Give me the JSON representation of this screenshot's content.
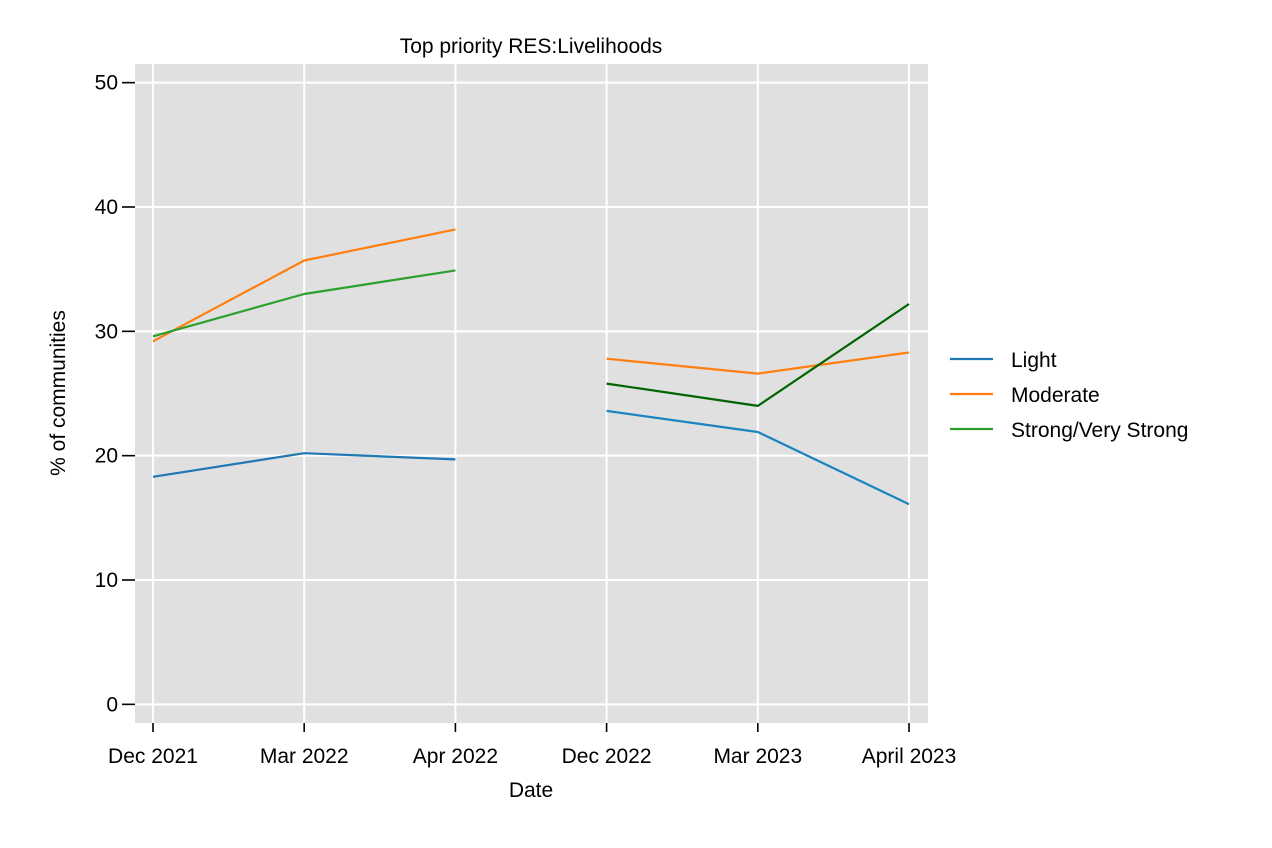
{
  "chart_data": {
    "type": "line",
    "title": "Top priority RES:Livelihoods",
    "xlabel": "Date",
    "ylabel": "% of communities",
    "categories": [
      "Dec 2021",
      "Mar 2022",
      "Apr 2022",
      "Dec 2022",
      "Mar 2023",
      "April 2023"
    ],
    "ylim": [
      -1.5,
      51.5
    ],
    "yticks": [
      0,
      10,
      20,
      30,
      40,
      50
    ],
    "grid": true,
    "background": "#e0e0e0",
    "legend_position": "right",
    "series": [
      {
        "name": "Light",
        "color": "#1f77b4",
        "segments": [
          {
            "indices": [
              0,
              1,
              2
            ],
            "values": [
              18.3,
              20.2,
              19.7
            ]
          },
          {
            "indices": [
              3,
              4,
              5
            ],
            "values": [
              23.6,
              21.9,
              16.1
            ],
            "color": "#1a85c0"
          }
        ]
      },
      {
        "name": "Moderate",
        "color": "#ff7f0e",
        "segments": [
          {
            "indices": [
              0,
              1,
              2
            ],
            "values": [
              29.2,
              35.7,
              38.2
            ]
          },
          {
            "indices": [
              3,
              4,
              5
            ],
            "values": [
              27.8,
              26.6,
              28.3
            ]
          }
        ]
      },
      {
        "name": "Strong/Very Strong",
        "color": "#2ca02c",
        "segments": [
          {
            "indices": [
              0,
              1,
              2
            ],
            "values": [
              29.6,
              33.0,
              34.9
            ]
          },
          {
            "indices": [
              3,
              4,
              5
            ],
            "values": [
              25.8,
              24.0,
              32.2
            ],
            "color": "#006400"
          }
        ]
      }
    ]
  }
}
